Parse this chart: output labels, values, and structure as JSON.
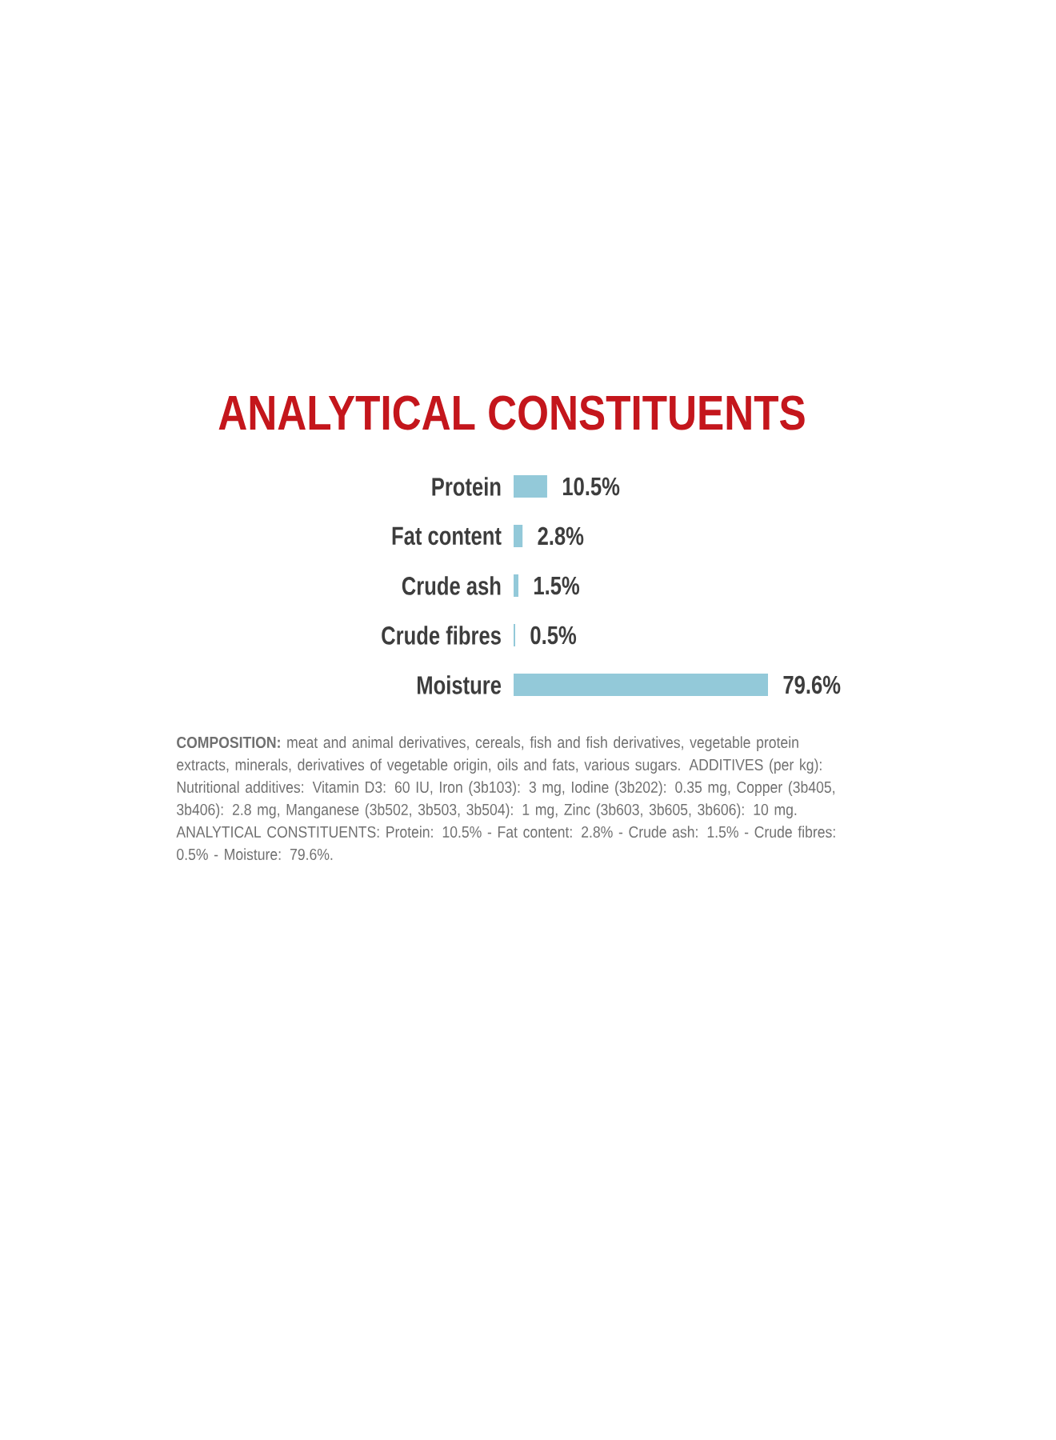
{
  "chart_data": {
    "type": "bar",
    "orientation": "horizontal",
    "title": "ANALYTICAL CONSTITUENTS",
    "categories": [
      "Protein",
      "Fat content",
      "Crude ash",
      "Crude fibres",
      "Moisture"
    ],
    "values": [
      10.5,
      2.8,
      1.5,
      0.5,
      79.6
    ],
    "color": "#93c9d9",
    "value_labels": [
      "10.5%",
      "2.8%",
      "1.5%",
      "0.5%",
      "79.6%"
    ],
    "annotations": [
      "**COMPOSITION:** meat and animal derivatives, cereals, fish and fish derivatives, vegetable protein extracts, minerals, derivatives of vegetable origin, oils and fats, various sugars. ADDITIVES (per kg): Nutritional additives: Vitamin D3: 60 IU, Iron (3b103): 3 mg, Iodine (3b202): 0.35 mg, Copper (3b405, 3b406): 2.8 mg, Manganese (3b502, 3b503, 3b504): 1 mg, Zinc (3b603, 3b605, 3b606): 10 mg. ANALYTICAL CONSTITUENTS: Protein: 10.5% - Fat content: 2.8% - Crude ash: 1.5% - Crude fibres: 0.5% - Moisture: 79.6%."
    ]
  }
}
